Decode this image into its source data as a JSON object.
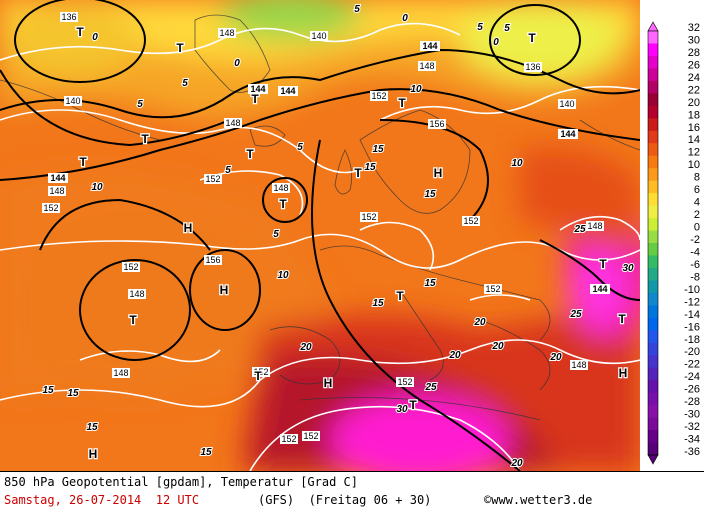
{
  "title_line": "850 hPa Geopotential [gpdam], Temperatur [Grad C]",
  "date_line": "Samstag, 26-07-2014  12 UTC",
  "model_line": "(GFS)  (Freitag 06 + 30)",
  "credit": "©www.wetter3.de",
  "legend": {
    "values": [
      "32",
      "30",
      "28",
      "26",
      "24",
      "22",
      "20",
      "18",
      "16",
      "14",
      "12",
      "10",
      "8",
      "6",
      "4",
      "2",
      "0",
      "-2",
      "-4",
      "-6",
      "-8",
      "-10",
      "-12",
      "-14",
      "-16",
      "-18",
      "-20",
      "-22",
      "-24",
      "-26",
      "-28",
      "-30",
      "-32",
      "-34",
      "-36"
    ],
    "colors": [
      "#ff66ff",
      "#ff00ff",
      "#e600cc",
      "#cc0099",
      "#b30066",
      "#990033",
      "#b3002d",
      "#cc1a1a",
      "#e03a1a",
      "#ee5a14",
      "#f77a10",
      "#fb9a18",
      "#ffbb22",
      "#ffdd33",
      "#eeee44",
      "#ccee33",
      "#99dd44",
      "#66cc44",
      "#33bb66",
      "#22aa88",
      "#1199aa",
      "#1188cc",
      "#0077dd",
      "#0066ee",
      "#2255ee",
      "#3344dd",
      "#4433cc",
      "#5522bb",
      "#6611aa",
      "#7711aa",
      "#8811aa",
      "#7a0a99",
      "#660088",
      "#550077"
    ]
  },
  "map_labels": {
    "geopotential": [
      "136",
      "144",
      "148",
      "140",
      "144",
      "148",
      "152",
      "156",
      "148",
      "144",
      "144",
      "148",
      "152",
      "152",
      "148",
      "136",
      "140",
      "144",
      "144",
      "140",
      "148",
      "152",
      "156",
      "148",
      "152",
      "152",
      "148",
      "148",
      "152",
      "152",
      "152",
      "144",
      "148",
      "152",
      "152"
    ],
    "temperature": [
      "0",
      "0",
      "5",
      "5",
      "5",
      "5",
      "10",
      "10",
      "15",
      "15",
      "15",
      "15",
      "15",
      "15",
      "15",
      "20",
      "20",
      "20",
      "20",
      "25",
      "25",
      "25",
      "30",
      "30",
      "20",
      "20",
      "15",
      "15",
      "5",
      "5",
      "10",
      "10",
      "0",
      "0",
      "5",
      "5"
    ],
    "pressure_centers": [
      "T",
      "T",
      "T",
      "T",
      "T",
      "T",
      "T",
      "T",
      "T",
      "T",
      "T",
      "T",
      "T",
      "T",
      "T",
      "T",
      "H",
      "H",
      "H",
      "H",
      "H",
      "H"
    ]
  }
}
